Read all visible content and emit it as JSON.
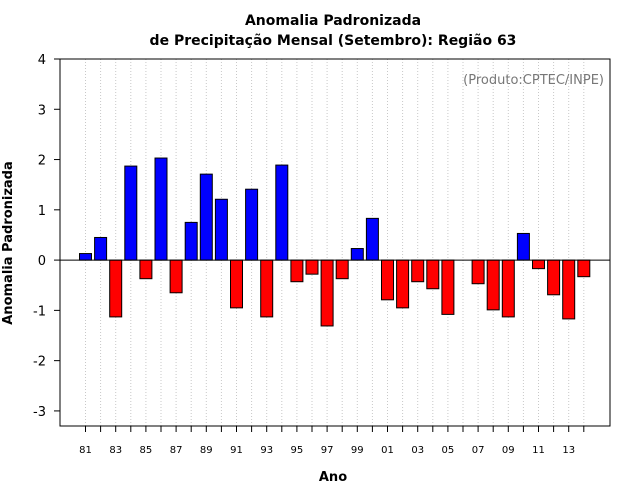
{
  "chart_data": {
    "type": "bar",
    "title_line1": "Anomalia Padronizada",
    "title_line2": "de Precipitação Mensal (Setembro): Região 63",
    "xlabel": "Ano",
    "ylabel": "Anomalia Padronizada",
    "annotation": "(Produto:CPTEC/INPE)",
    "ylim": [
      -3.3,
      4.0
    ],
    "yticks": [
      -3,
      -2,
      -1,
      0,
      1,
      2,
      3,
      4
    ],
    "grid": "vertical-dotted",
    "positive_color": "#0000ff",
    "negative_color": "#ff0000",
    "categories": [
      "81",
      "82",
      "83",
      "84",
      "85",
      "86",
      "87",
      "88",
      "89",
      "90",
      "91",
      "92",
      "93",
      "94",
      "95",
      "96",
      "97",
      "98",
      "99",
      "00",
      "01",
      "02",
      "03",
      "04",
      "05",
      "06",
      "07",
      "08",
      "09",
      "10",
      "11",
      "12",
      "13",
      "14"
    ],
    "x_tick_labels": [
      "81",
      "83",
      "85",
      "87",
      "89",
      "91",
      "93",
      "95",
      "97",
      "99",
      "01",
      "03",
      "05",
      "07",
      "09",
      "11",
      "13"
    ],
    "values": [
      0.13,
      0.45,
      -1.13,
      1.87,
      -0.37,
      2.03,
      -0.65,
      0.75,
      1.71,
      1.21,
      -0.95,
      1.41,
      -1.13,
      1.89,
      -0.43,
      -0.28,
      -1.31,
      -0.37,
      0.23,
      0.83,
      -0.79,
      -0.95,
      -0.43,
      -0.57,
      -1.08,
      0.0,
      -0.47,
      -0.99,
      -1.13,
      0.53,
      -0.17,
      -0.69,
      -1.17,
      -0.33
    ]
  }
}
